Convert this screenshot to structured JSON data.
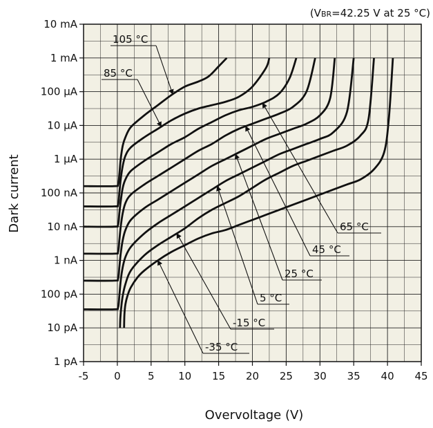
{
  "chart_data": {
    "type": "line",
    "title": "",
    "note": {
      "prefix": "(V",
      "sub": "BR",
      "suffix": "=42.25 V at 25 °C)"
    },
    "xlabel": "Overvoltage (V)",
    "ylabel": "Dark current",
    "xlim": [
      -5,
      45
    ],
    "x_ticks": [
      -5,
      0,
      5,
      10,
      15,
      20,
      25,
      30,
      35,
      40,
      45
    ],
    "x_tick_labels": [
      "-5",
      "0",
      "5",
      "10",
      "15",
      "20",
      "25",
      "30",
      "35",
      "40",
      "45"
    ],
    "y_scale": "log",
    "ylim_A": [
      1e-12,
      0.01
    ],
    "y_ticks_A": [
      1e-12,
      1e-11,
      1e-10,
      1e-09,
      1e-08,
      1e-07,
      1e-06,
      1e-05,
      0.0001,
      0.001,
      0.01
    ],
    "y_tick_labels": [
      "1 pA",
      "10 pA",
      "100 pA",
      "1 nA",
      "10 nA",
      "100 nA",
      "1 μA",
      "10 μA",
      "100 μA",
      "1 mA",
      "10 mA"
    ],
    "grid": true,
    "series": [
      {
        "name": "105 °C",
        "x": [
          -5,
          -0.5,
          0.1,
          0.3,
          0.5,
          0.8,
          1.2,
          2,
          4,
          6,
          8,
          10,
          12,
          13.5,
          15,
          16.2
        ],
        "y_log10": [
          -6.8,
          -6.8,
          -6.75,
          -6.45,
          -6.0,
          -5.6,
          -5.35,
          -5.05,
          -4.7,
          -4.4,
          -4.1,
          -3.85,
          -3.7,
          -3.55,
          -3.25,
          -3.0
        ]
      },
      {
        "name": "85 °C",
        "x": [
          -5,
          -0.5,
          0.1,
          0.3,
          0.5,
          0.8,
          1.2,
          2,
          4,
          6,
          8,
          10,
          12,
          14,
          16,
          18,
          20,
          22,
          22.5
        ],
        "y_log10": [
          -7.4,
          -7.4,
          -7.35,
          -7.0,
          -6.6,
          -6.2,
          -5.9,
          -5.65,
          -5.35,
          -5.1,
          -4.85,
          -4.65,
          -4.5,
          -4.4,
          -4.3,
          -4.15,
          -3.85,
          -3.3,
          -3.0
        ]
      },
      {
        "name": "65 °C",
        "x": [
          -5,
          -0.5,
          0.1,
          0.3,
          0.5,
          0.8,
          1.2,
          2,
          4,
          6,
          8,
          10,
          12,
          14,
          16,
          18,
          20,
          22,
          24,
          25.5,
          26.5
        ],
        "y_log10": [
          -8.0,
          -8.0,
          -7.95,
          -7.6,
          -7.25,
          -6.85,
          -6.6,
          -6.35,
          -6.05,
          -5.8,
          -5.55,
          -5.35,
          -5.1,
          -4.9,
          -4.7,
          -4.55,
          -4.45,
          -4.3,
          -4.05,
          -3.6,
          -3.0
        ]
      },
      {
        "name": "45 °C",
        "x": [
          -5,
          -0.5,
          0.1,
          0.3,
          0.5,
          0.8,
          1.2,
          2,
          4,
          6,
          8,
          10,
          12,
          14,
          16,
          18,
          20,
          22,
          24,
          26,
          28,
          29.3
        ],
        "y_log10": [
          -8.8,
          -8.8,
          -8.75,
          -8.4,
          -8.0,
          -7.6,
          -7.3,
          -7.05,
          -6.75,
          -6.5,
          -6.25,
          -6.0,
          -5.75,
          -5.55,
          -5.3,
          -5.1,
          -4.95,
          -4.8,
          -4.65,
          -4.45,
          -4.0,
          -3.0
        ]
      },
      {
        "name": "25 °C",
        "x": [
          -5,
          -0.5,
          0.1,
          0.3,
          0.5,
          0.8,
          1.2,
          2,
          4,
          6,
          8,
          10,
          12,
          14,
          16,
          18,
          20,
          22,
          24,
          26,
          28,
          30,
          31.5,
          32.2
        ],
        "y_log10": [
          -9.6,
          -9.6,
          -9.55,
          -9.2,
          -8.8,
          -8.4,
          -8.1,
          -7.8,
          -7.45,
          -7.2,
          -6.95,
          -6.7,
          -6.45,
          -6.2,
          -6.0,
          -5.8,
          -5.6,
          -5.4,
          -5.25,
          -5.1,
          -4.95,
          -4.7,
          -4.2,
          -3.0
        ]
      },
      {
        "name": "5 °C",
        "x": [
          -5,
          -0.5,
          0.1,
          0.3,
          0.5,
          0.8,
          1.2,
          2,
          4,
          6,
          8,
          10,
          12,
          14,
          16,
          18,
          20,
          22,
          24,
          26,
          28,
          30,
          32,
          34,
          35.0
        ],
        "y_log10": [
          -10.45,
          -10.45,
          -10.4,
          -10.05,
          -9.6,
          -9.2,
          -8.9,
          -8.6,
          -8.2,
          -7.9,
          -7.65,
          -7.4,
          -7.15,
          -6.9,
          -6.65,
          -6.45,
          -6.25,
          -6.05,
          -5.85,
          -5.7,
          -5.55,
          -5.4,
          -5.2,
          -4.6,
          -3.0
        ]
      },
      {
        "name": "-15 °C",
        "x": [
          0.4,
          0.45,
          0.6,
          0.8,
          1.2,
          2,
          4,
          6,
          8,
          10,
          12,
          14,
          16,
          18,
          20,
          22,
          24,
          26,
          28,
          30,
          32,
          34,
          36,
          37.2,
          38.0
        ],
        "y_log10": [
          -11.0,
          -10.7,
          -10.35,
          -10.05,
          -9.7,
          -9.3,
          -8.85,
          -8.55,
          -8.3,
          -8.05,
          -7.75,
          -7.5,
          -7.3,
          -7.1,
          -6.85,
          -6.6,
          -6.4,
          -6.2,
          -6.05,
          -5.9,
          -5.75,
          -5.6,
          -5.3,
          -4.8,
          -3.0
        ]
      },
      {
        "name": "-35 °C",
        "x": [
          1.0,
          1.05,
          1.2,
          1.5,
          2,
          3,
          4,
          6,
          8,
          10,
          12,
          14,
          16,
          18,
          20,
          22,
          24,
          26,
          28,
          30,
          32,
          34,
          36,
          38,
          39.5,
          40.2,
          40.8
        ],
        "y_log10": [
          -11.0,
          -10.6,
          -10.3,
          -10.05,
          -9.8,
          -9.5,
          -9.3,
          -9.0,
          -8.75,
          -8.55,
          -8.35,
          -8.2,
          -8.1,
          -7.95,
          -7.8,
          -7.65,
          -7.5,
          -7.35,
          -7.2,
          -7.05,
          -6.9,
          -6.75,
          -6.6,
          -6.3,
          -5.8,
          -4.8,
          -3.0
        ]
      }
    ],
    "annotations": [
      {
        "text": "105 °C",
        "series": "105 °C"
      },
      {
        "text": "85 °C",
        "series": "85 °C"
      },
      {
        "text": "65 °C",
        "series": "65 °C"
      },
      {
        "text": "45 °C",
        "series": "45 °C"
      },
      {
        "text": "25 °C",
        "series": "25 °C"
      },
      {
        "text": "5 °C",
        "series": "5 °C"
      },
      {
        "text": "-15 °C",
        "series": "-15 °C"
      },
      {
        "text": "-35 °C",
        "series": "-35 °C"
      }
    ],
    "colors": {
      "plot_bg": "#f2f0e4",
      "grid": "#222222",
      "line": "#111111"
    }
  }
}
